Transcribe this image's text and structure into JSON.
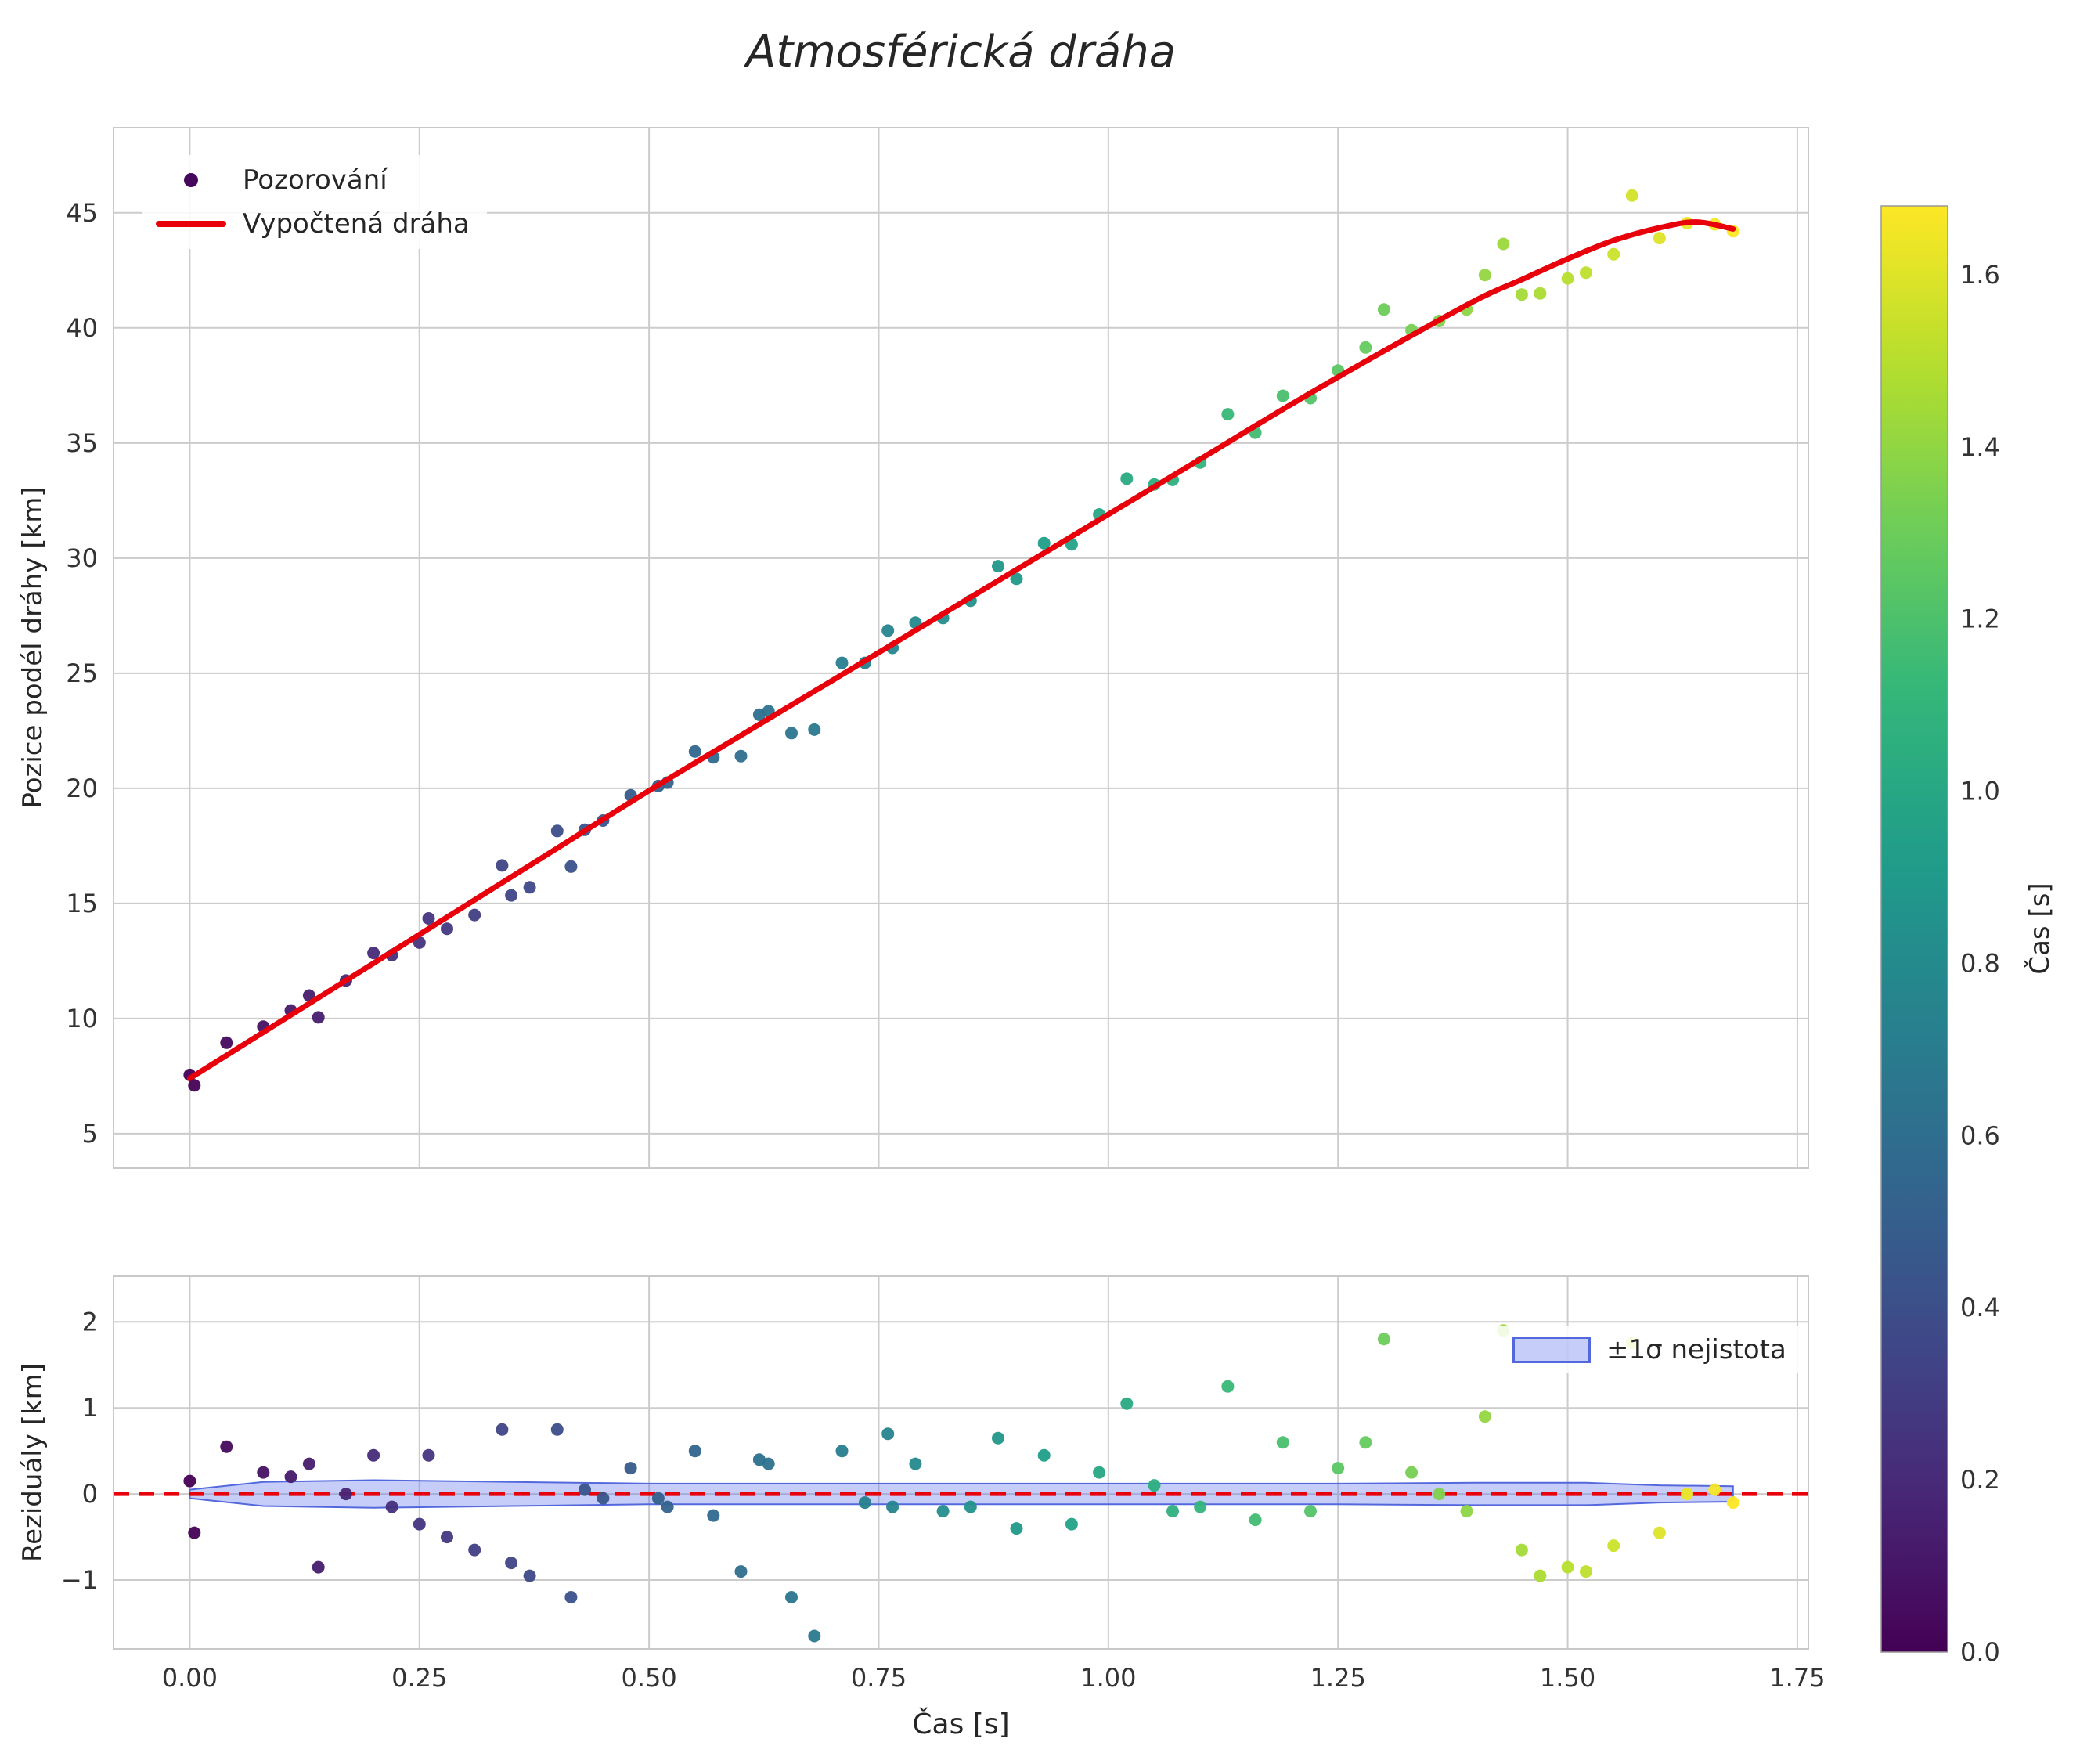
{
  "title": "Atmosférická dráha",
  "colorbar": {
    "label": "Čas [s]",
    "colormap": "viridis",
    "vmin": 0.0,
    "vmax": 1.68,
    "ticks": [
      0.0,
      0.2,
      0.4,
      0.6,
      0.8,
      1.0,
      1.2,
      1.4,
      1.6
    ],
    "tick_labels": [
      "0.0",
      "0.2",
      "0.4",
      "0.6",
      "0.8",
      "1.0",
      "1.2",
      "1.4",
      "1.6"
    ]
  },
  "colors": {
    "fit_line": "#e8000b",
    "zero_line": "#e8000b",
    "band_fill": "rgba(92,112,235,0.35)",
    "band_edge": "#5468dd",
    "grid": "#cccccc",
    "spine": "#c9c9c9",
    "tick_text": "#333333",
    "legend_marker": "#46085c",
    "background": "#ffffff"
  },
  "chart_data": [
    {
      "type": "scatter",
      "title": "Atmosférická dráha",
      "xlabel": "",
      "ylabel": "Pozice podél dráhy [km]",
      "xlim": [
        -0.083,
        1.762
      ],
      "ylim": [
        3.5,
        48.7
      ],
      "grid": true,
      "legend_position": "upper left",
      "xticks": {
        "values": [
          0.0,
          0.25,
          0.5,
          0.75,
          1.0,
          1.25,
          1.5,
          1.75
        ],
        "labels": [
          "0.00",
          "0.25",
          "0.50",
          "0.75",
          "1.00",
          "1.25",
          "1.50",
          "1.75"
        ],
        "show_labels": false
      },
      "yticks": {
        "values": [
          5,
          10,
          15,
          20,
          25,
          30,
          35,
          40,
          45
        ],
        "labels": [
          "5",
          "10",
          "15",
          "20",
          "25",
          "30",
          "35",
          "40",
          "45"
        ]
      },
      "legend": {
        "observations": "Pozorování",
        "fit": "Vypočtená dráha"
      },
      "series": [
        {
          "name": "Pozorování",
          "type": "scatter",
          "color_by": "t",
          "t": [
            0.0,
            0.005,
            0.04,
            0.08,
            0.11,
            0.13,
            0.14,
            0.17,
            0.2,
            0.22,
            0.25,
            0.26,
            0.28,
            0.31,
            0.34,
            0.35,
            0.37,
            0.4,
            0.415,
            0.43,
            0.45,
            0.48,
            0.51,
            0.52,
            0.55,
            0.57,
            0.6,
            0.62,
            0.63,
            0.655,
            0.68,
            0.71,
            0.735,
            0.76,
            0.765,
            0.79,
            0.82,
            0.85,
            0.88,
            0.9,
            0.93,
            0.96,
            0.99,
            1.02,
            1.05,
            1.07,
            1.1,
            1.13,
            1.16,
            1.19,
            1.22,
            1.25,
            1.28,
            1.3,
            1.33,
            1.36,
            1.39,
            1.41,
            1.43,
            1.45,
            1.47,
            1.5,
            1.52,
            1.55,
            1.57,
            1.6,
            1.63,
            1.66,
            1.68
          ],
          "pos": [
            7.55,
            7.1,
            8.95,
            9.65,
            10.35,
            11.0,
            10.05,
            11.65,
            12.85,
            12.75,
            13.3,
            14.35,
            13.9,
            14.5,
            16.65,
            15.35,
            15.7,
            18.15,
            16.6,
            18.2,
            18.6,
            19.7,
            20.1,
            20.25,
            21.6,
            21.35,
            21.4,
            23.2,
            23.35,
            22.4,
            22.55,
            25.45,
            25.45,
            26.85,
            26.1,
            27.2,
            27.4,
            28.15,
            29.65,
            29.1,
            30.65,
            30.6,
            31.9,
            33.45,
            33.2,
            33.4,
            34.15,
            36.25,
            35.45,
            37.05,
            36.95,
            38.15,
            39.15,
            40.8,
            39.9,
            40.3,
            40.8,
            42.3,
            43.65,
            41.45,
            41.5,
            42.15,
            42.4,
            43.2,
            45.75,
            43.9,
            44.55,
            44.5,
            44.2
          ]
        },
        {
          "name": "Vypočtená dráha",
          "type": "line",
          "color": "#e8000b",
          "t": [
            0.0,
            0.1,
            0.2,
            0.3,
            0.4,
            0.5,
            0.6,
            0.7,
            0.8,
            0.9,
            1.0,
            1.1,
            1.2,
            1.3,
            1.4,
            1.45,
            1.5,
            1.55,
            1.6,
            1.64,
            1.68
          ],
          "pos": [
            7.4,
            9.9,
            12.4,
            14.9,
            17.4,
            19.9,
            22.3,
            24.7,
            27.1,
            29.5,
            31.9,
            34.3,
            36.7,
            39.0,
            41.2,
            42.1,
            43.0,
            43.8,
            44.35,
            44.6,
            44.3
          ]
        }
      ]
    },
    {
      "type": "scatter",
      "title": "",
      "xlabel": "Čas [s]",
      "ylabel": "Reziduály [km]",
      "xlim": [
        -0.083,
        1.762
      ],
      "ylim": [
        -1.8,
        2.53
      ],
      "grid": true,
      "zero_line": 0.0,
      "band_label": "±1σ nejistota",
      "legend_position": "upper right",
      "xticks": {
        "values": [
          0.0,
          0.25,
          0.5,
          0.75,
          1.0,
          1.25,
          1.5,
          1.75
        ],
        "labels": [
          "0.00",
          "0.25",
          "0.50",
          "0.75",
          "1.00",
          "1.25",
          "1.50",
          "1.75"
        ],
        "show_labels": true
      },
      "yticks": {
        "values": [
          -1,
          0,
          1,
          2
        ],
        "labels": [
          "−1",
          "0",
          "1",
          "2"
        ]
      },
      "band": {
        "t": [
          0.0,
          0.08,
          0.2,
          0.35,
          0.5,
          0.65,
          0.8,
          0.95,
          1.1,
          1.25,
          1.4,
          1.52,
          1.6,
          1.68
        ],
        "sigma": [
          0.05,
          0.14,
          0.16,
          0.14,
          0.12,
          0.12,
          0.12,
          0.12,
          0.12,
          0.12,
          0.13,
          0.13,
          0.1,
          0.09
        ]
      },
      "series": [
        {
          "name": "residuals",
          "type": "scatter",
          "color_by": "t",
          "t": [
            0.0,
            0.005,
            0.04,
            0.08,
            0.11,
            0.13,
            0.14,
            0.17,
            0.2,
            0.22,
            0.25,
            0.26,
            0.28,
            0.31,
            0.34,
            0.35,
            0.37,
            0.4,
            0.415,
            0.43,
            0.45,
            0.48,
            0.51,
            0.52,
            0.55,
            0.57,
            0.6,
            0.62,
            0.63,
            0.655,
            0.68,
            0.71,
            0.735,
            0.76,
            0.765,
            0.79,
            0.82,
            0.85,
            0.88,
            0.9,
            0.93,
            0.96,
            0.99,
            1.02,
            1.05,
            1.07,
            1.1,
            1.13,
            1.16,
            1.19,
            1.22,
            1.25,
            1.28,
            1.3,
            1.33,
            1.36,
            1.39,
            1.41,
            1.43,
            1.45,
            1.47,
            1.5,
            1.52,
            1.55,
            1.57,
            1.6,
            1.63,
            1.66,
            1.68
          ],
          "r": [
            0.15,
            -0.45,
            0.55,
            0.25,
            0.2,
            0.35,
            -0.85,
            0.0,
            0.45,
            -0.15,
            -0.35,
            0.45,
            -0.5,
            -0.65,
            0.75,
            -0.8,
            -0.95,
            0.75,
            -1.2,
            0.05,
            -0.05,
            0.3,
            -0.05,
            -0.15,
            0.5,
            -0.25,
            -0.9,
            0.4,
            0.35,
            -1.2,
            -1.65,
            0.5,
            -0.1,
            0.7,
            -0.15,
            0.35,
            -0.2,
            -0.15,
            0.65,
            -0.4,
            0.45,
            -0.35,
            0.25,
            1.05,
            0.1,
            -0.2,
            -0.15,
            1.25,
            -0.3,
            0.6,
            -0.2,
            0.3,
            0.6,
            1.8,
            0.25,
            0.0,
            -0.2,
            0.9,
            1.9,
            -0.65,
            -0.95,
            -0.85,
            -0.9,
            -0.6,
            1.75,
            -0.45,
            0.0,
            0.05,
            -0.1
          ]
        }
      ]
    }
  ]
}
